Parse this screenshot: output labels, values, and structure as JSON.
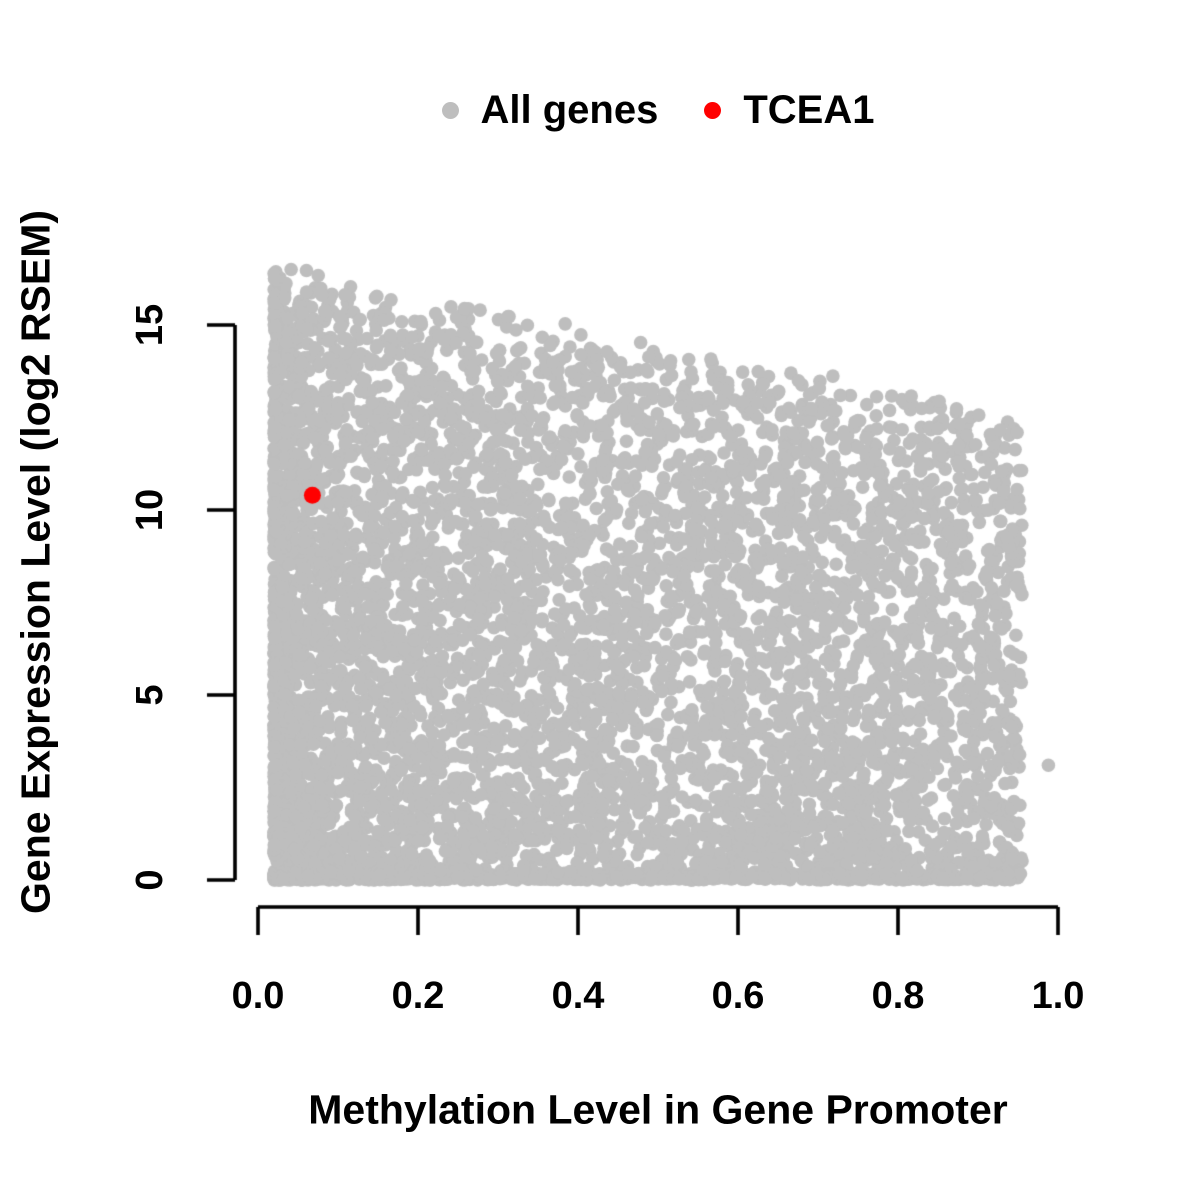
{
  "figure": {
    "background_color": "#FFFFFF",
    "text_color": "#000000",
    "legend": {
      "items": [
        {
          "label": "All genes",
          "color": "#BEBEBE"
        },
        {
          "label": "TCEA1",
          "color": "#FF0000"
        }
      ]
    },
    "x_axis": {
      "label": "Methylation Level in Gene Promoter",
      "tick_labels": [
        "0.0",
        "0.2",
        "0.4",
        "0.6",
        "0.8",
        "1.0"
      ]
    },
    "y_axis": {
      "label": "Gene Expression Level (log2 RSEM)",
      "tick_labels": [
        "0",
        "5",
        "10",
        "15"
      ]
    }
  },
  "chart_data": {
    "type": "scatter",
    "title": "",
    "xlabel": "Methylation Level in Gene Promoter",
    "ylabel": "Gene Expression Level (log2 RSEM)",
    "xlim": [
      0,
      1.0
    ],
    "ylim": [
      0,
      17
    ],
    "x_ticks": [
      0,
      0.2,
      0.4,
      0.6,
      0.8,
      1.0
    ],
    "y_ticks": [
      0,
      5,
      10,
      15
    ],
    "grid": false,
    "legend_position": "top-center",
    "series": [
      {
        "name": "All genes",
        "color": "#BEBEBE",
        "marker": "filled-circle",
        "marker_radius_px": 6.8,
        "n_points": 7000,
        "x_range": [
          0.02,
          0.955
        ],
        "y_range": [
          0,
          16.7
        ],
        "pattern": "negative correlation: dense saturated cloud at low methylation spanning expression 0-16.5; upper envelope of expression falls from ~16.3 at methylation 0 to ~12.3 at methylation 0.95; solid mass below ~8 across all methylation levels and a dense band at 0 expression",
        "generator": {
          "seed": 1337,
          "uniform_x_share": 0.42,
          "x_skew_pow": 2.0,
          "y_pow": 1.15,
          "envelope_intercept": 16.3,
          "envelope_slope": -4.3,
          "envelope_jitter": 1.0,
          "zero_band_share": 0.1,
          "zero_band_max": 0.18
        },
        "isolated_point": [
          0.988,
          3.1
        ]
      },
      {
        "name": "TCEA1",
        "color": "#FF0000",
        "marker": "filled-circle",
        "marker_radius_px": 8.5,
        "points": [
          [
            0.068,
            10.4
          ]
        ]
      }
    ]
  }
}
